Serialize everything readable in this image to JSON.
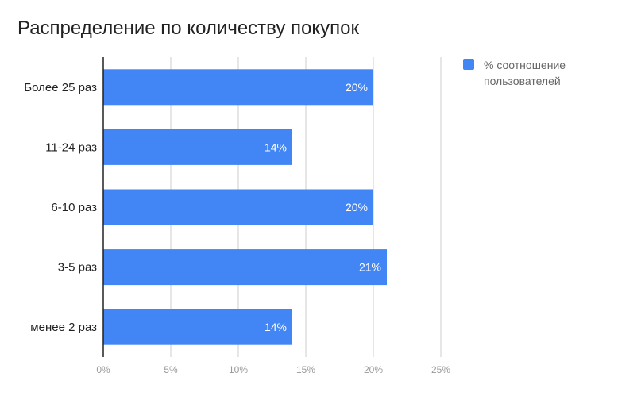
{
  "colors": {
    "bar": "#4285f4",
    "grid": "#cccccc",
    "axis": "#222222",
    "label": "#222222",
    "tick": "#999999",
    "data_label": "#ffffff"
  },
  "chart_data": {
    "type": "bar",
    "orientation": "horizontal",
    "title": "Распределение по количеству покупок",
    "categories": [
      "Более 25 раз",
      "11-24 раз",
      "6-10 раз",
      "3-5 раз",
      "менее 2 раз"
    ],
    "series": [
      {
        "name": "% соотношение пользователей",
        "values": [
          20,
          14,
          20,
          21,
          14
        ]
      }
    ],
    "data_labels": [
      "20%",
      "14%",
      "20%",
      "21%",
      "14%"
    ],
    "xlim": [
      0,
      25
    ],
    "x_ticks": [
      0,
      5,
      10,
      15,
      20,
      25
    ],
    "x_tick_labels": [
      "0%",
      "5%",
      "10%",
      "15%",
      "20%",
      "25%"
    ],
    "xlabel": "",
    "ylabel": "",
    "grid": true,
    "legend_position": "top-right"
  }
}
